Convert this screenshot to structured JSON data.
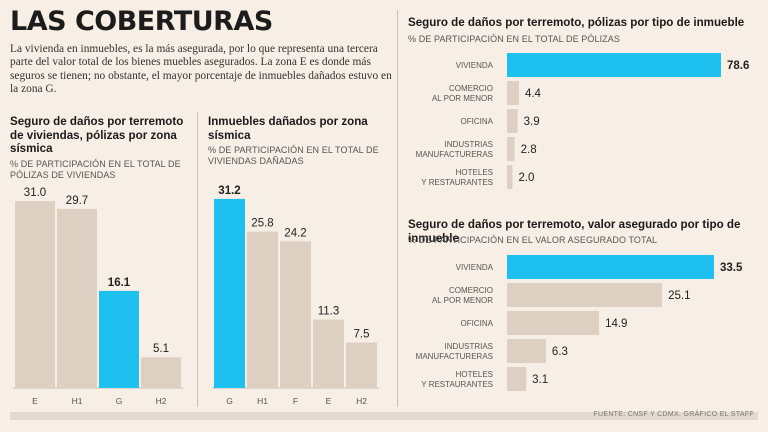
{
  "header": {
    "title": "LAS COBERTURAS",
    "intro": "La vivienda en inmuebles, es la más asegurada, por lo que representa una tercera parte del valor total de los bienes muebles asegurados. La zona E es donde más seguros se tienen; no obstante, el mayor porcentaje de inmuebles dañados estuvo en la zona G."
  },
  "colors": {
    "highlight": "#1ec0f0",
    "bar": "#ddd0c3",
    "background": "#f7eee5"
  },
  "source": "FUENTE: CNSF Y CDMX. GRÁFICO EL STAFF",
  "chart_data": [
    {
      "id": "viviendas",
      "type": "bar",
      "title": "Seguro de daños por terremoto de viviendas, pólizas por zona sísmica",
      "subtitle": "% DE PARTICIPACIÓN EN EL TOTAL DE PÓLIZAS DE VIVIENDAS",
      "categories": [
        "E",
        "H1",
        "G",
        "H2"
      ],
      "values": [
        31.0,
        29.7,
        16.1,
        5.1
      ],
      "labels": [
        "31.0",
        "29.7",
        "16.1",
        "5.1"
      ],
      "highlight_index": 2,
      "ylim": [
        0,
        33
      ]
    },
    {
      "id": "danados",
      "type": "bar",
      "title": "Inmuebles dañados por zona sísmica",
      "subtitle": "% DE PARTICIPACIÓN EN EL TOTAL DE VIVIENDAS DAÑADAS",
      "categories": [
        "G",
        "H1",
        "F",
        "E",
        "H2"
      ],
      "values": [
        31.2,
        25.8,
        24.2,
        11.3,
        7.5
      ],
      "labels": [
        "31.2",
        "25.8",
        "24.2",
        "11.3",
        "7.5"
      ],
      "highlight_index": 0,
      "ylim": [
        0,
        33
      ]
    },
    {
      "id": "polizas-tipo",
      "type": "bar",
      "orientation": "horizontal",
      "title": "Seguro de daños por terremoto, pólizas por tipo de inmueble",
      "subtitle": "% DE PARTICIPACIÓN EN EL TOTAL DE PÓLIZAS",
      "categories": [
        [
          "VIVIENDA"
        ],
        [
          "COMERCIO",
          "AL POR MENOR"
        ],
        [
          "OFICINA"
        ],
        [
          "INDUSTRIAS",
          "MANUFACTURERAS"
        ],
        [
          "HOTELES",
          "Y RESTAURANTES"
        ]
      ],
      "values": [
        78.6,
        4.4,
        3.9,
        2.8,
        2.0
      ],
      "labels": [
        "78.6",
        "4.4",
        "3.9",
        "2.8",
        "2.0"
      ],
      "highlight_index": 0,
      "xlim": [
        0,
        78.6
      ]
    },
    {
      "id": "valor-tipo",
      "type": "bar",
      "orientation": "horizontal",
      "title": "Seguro de daños por terremoto, valor asegurado por tipo de inmueble",
      "subtitle": "% DE PARTICIPACIÓN EN EL VALOR ASEGURADO TOTAL",
      "categories": [
        [
          "VIVIENDA"
        ],
        [
          "COMERCIO",
          "AL POR MENOR"
        ],
        [
          "OFICINA"
        ],
        [
          "INDUSTRIAS",
          "MANUFACTURERAS"
        ],
        [
          "HOTELES",
          "Y RESTAURANTES"
        ]
      ],
      "values": [
        33.5,
        25.1,
        14.9,
        6.3,
        3.1
      ],
      "labels": [
        "33.5",
        "25.1",
        "14.9",
        "6.3",
        "3.1"
      ],
      "highlight_index": 0,
      "xlim": [
        0,
        33.5
      ]
    }
  ]
}
